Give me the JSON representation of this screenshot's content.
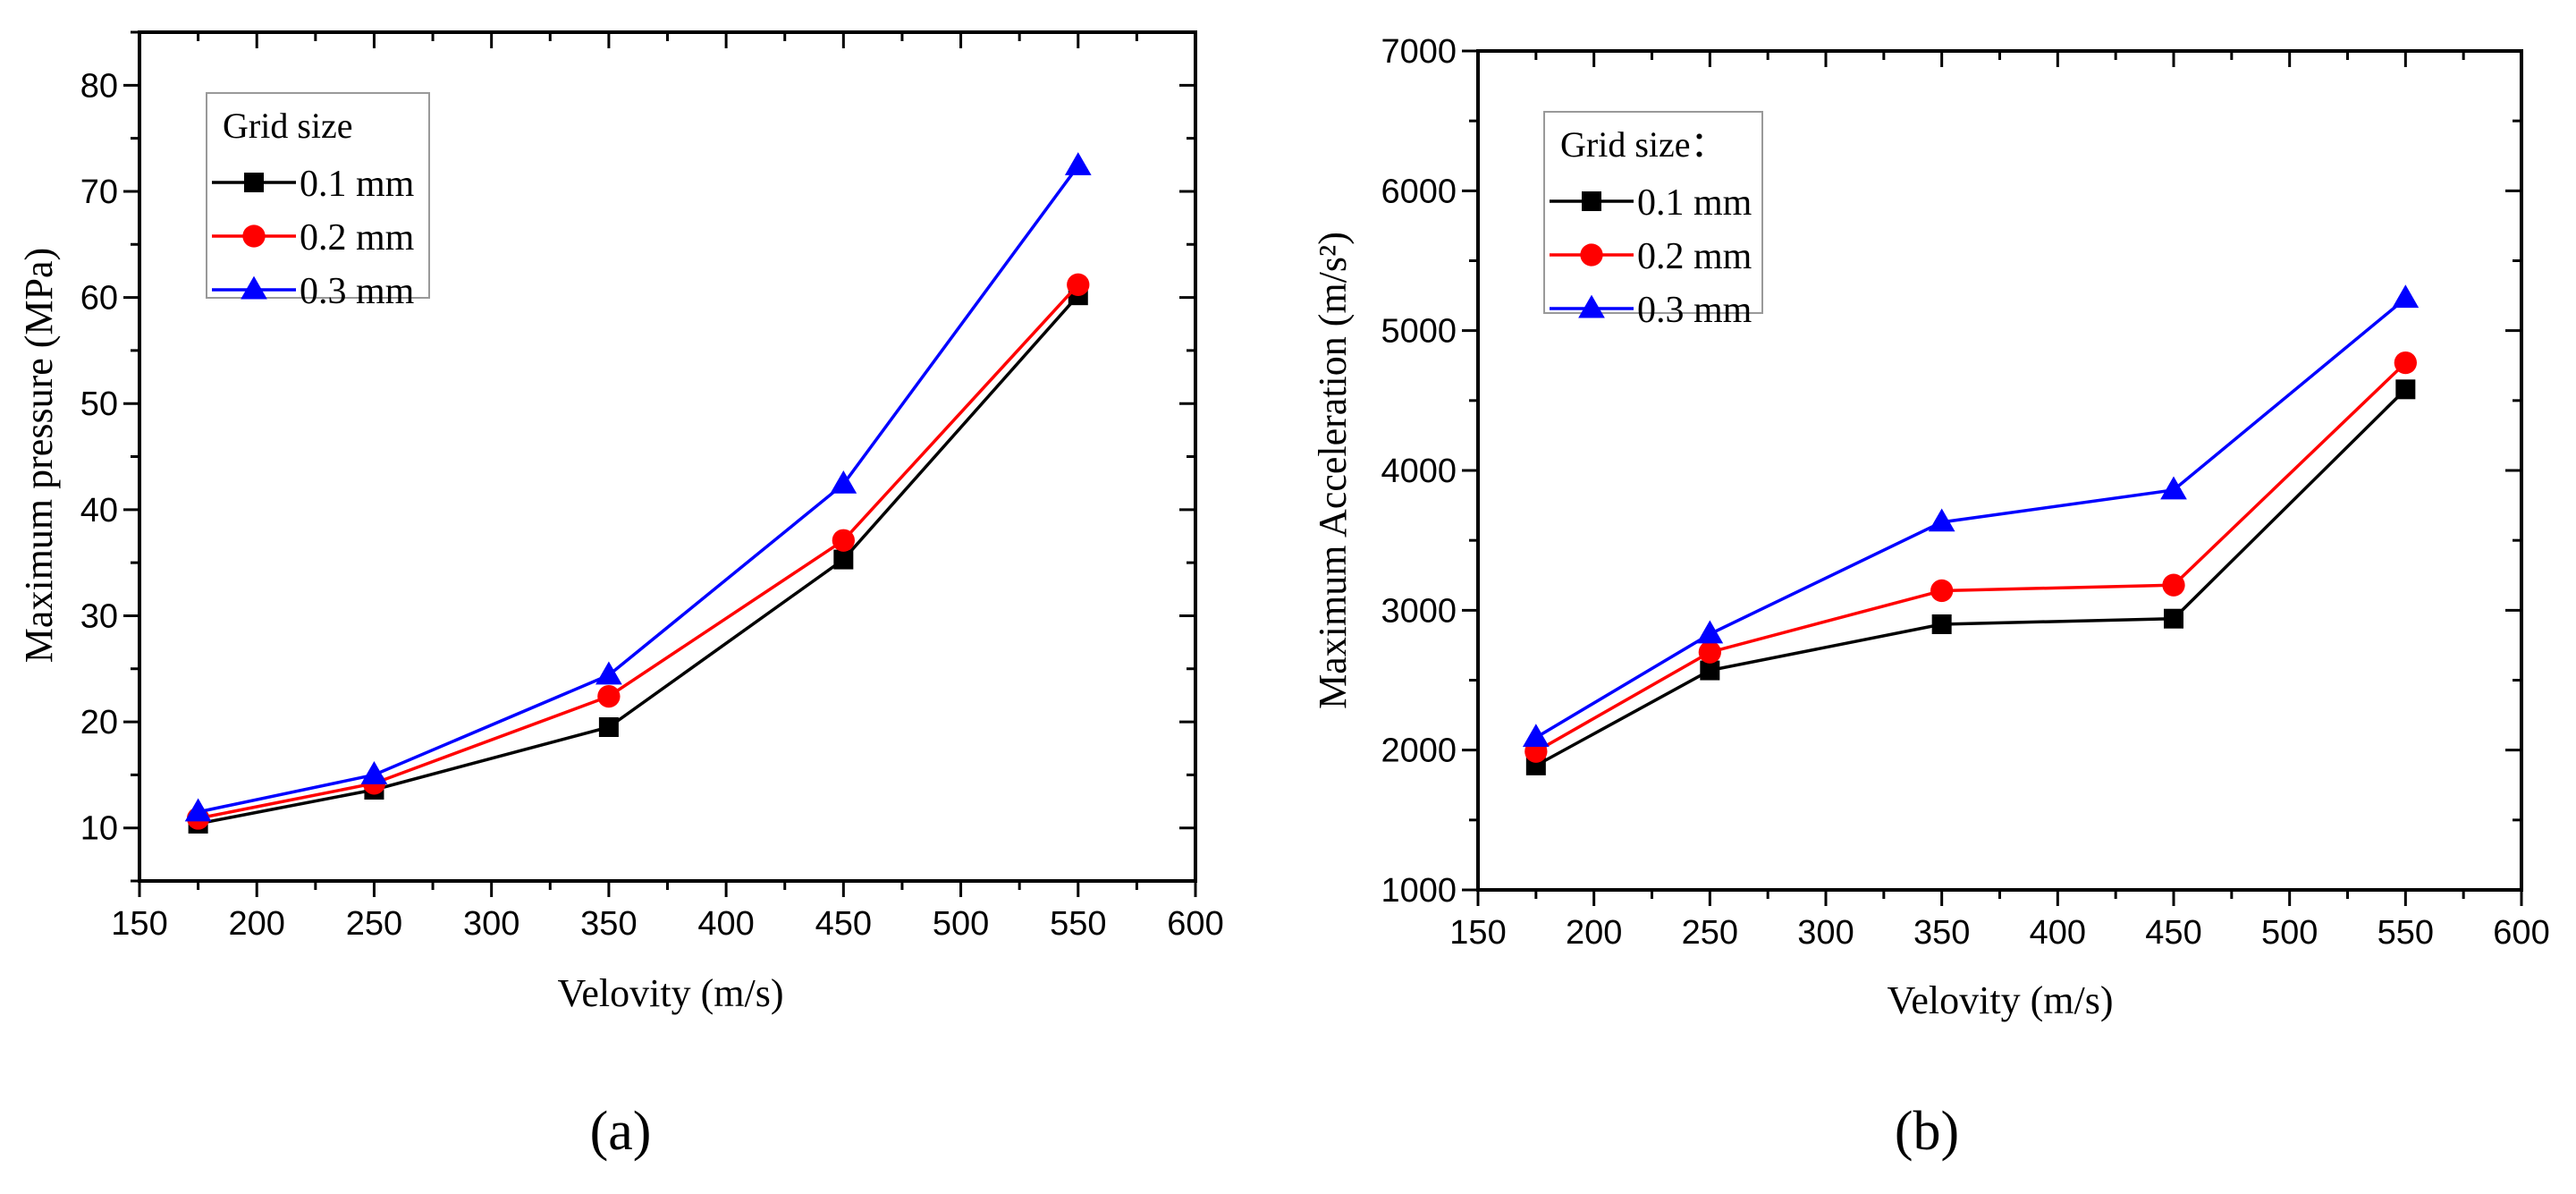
{
  "colors": {
    "s1": "#000000",
    "s2": "#ff0000",
    "s3": "#0000ff"
  },
  "chart_data": [
    {
      "type": "line",
      "panel_label": "(a)",
      "xlabel": "Velovity (m/s)",
      "ylabel": "Maximum pressure (MPa)",
      "xlim": [
        150,
        600
      ],
      "ylim": [
        5,
        85
      ],
      "xticks": [
        150,
        200,
        250,
        300,
        350,
        400,
        450,
        500,
        550,
        600
      ],
      "yticks": [
        10,
        20,
        30,
        40,
        50,
        60,
        70,
        80
      ],
      "grid": false,
      "legend_title": "Grid size",
      "legend_position": "top-left",
      "x": [
        175,
        250,
        350,
        450,
        550
      ],
      "series": [
        {
          "name": "0.1 mm",
          "marker": "square",
          "values": [
            10.4,
            13.6,
            19.5,
            35.3,
            60.2
          ]
        },
        {
          "name": "0.2 mm",
          "marker": "circle",
          "values": [
            10.9,
            14.2,
            22.4,
            37.1,
            61.2
          ]
        },
        {
          "name": "0.3 mm",
          "marker": "triangle",
          "values": [
            11.5,
            15.0,
            24.4,
            42.4,
            72.4
          ]
        }
      ]
    },
    {
      "type": "line",
      "panel_label": "(b)",
      "xlabel": "Velovity (m/s)",
      "ylabel": "Maximum Acceleration (m/s²)",
      "xlim": [
        150,
        600
      ],
      "ylim": [
        1000,
        7000
      ],
      "xticks": [
        150,
        200,
        250,
        300,
        350,
        400,
        450,
        500,
        550,
        600
      ],
      "yticks": [
        1000,
        2000,
        3000,
        4000,
        5000,
        6000,
        7000
      ],
      "grid": false,
      "legend_title": "Grid size：",
      "legend_position": "top-left",
      "x": [
        175,
        250,
        350,
        450,
        550
      ],
      "series": [
        {
          "name": "0.1 mm",
          "marker": "square",
          "values": [
            1890,
            2570,
            2900,
            2940,
            4580
          ]
        },
        {
          "name": "0.2 mm",
          "marker": "circle",
          "values": [
            1990,
            2700,
            3140,
            3180,
            4770
          ]
        },
        {
          "name": "0.3 mm",
          "marker": "triangle",
          "values": [
            2090,
            2830,
            3630,
            3860,
            5230
          ]
        }
      ]
    }
  ]
}
